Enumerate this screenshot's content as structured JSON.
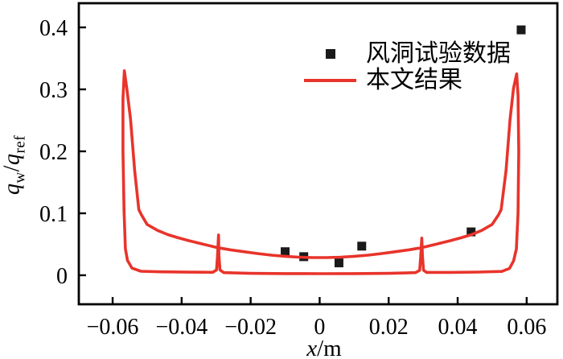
{
  "figure": {
    "background": "#ffffff",
    "axis_color": "#000000"
  },
  "axes": {
    "xlabel": {
      "variable": "x",
      "rest": "/m"
    },
    "ylabel": {
      "var1": "q",
      "sub1": "w",
      "separator": "/",
      "var2": "q",
      "sub2": "ref"
    }
  },
  "legend": {
    "items": [
      {
        "label": "风洞试验数据",
        "marker": "square",
        "color": "#1a1a1a"
      },
      {
        "label": "本文结果",
        "marker": "line",
        "color": "#e8342b"
      }
    ]
  },
  "chart_data": {
    "type": "line",
    "title": "",
    "xlabel": "x/m",
    "ylabel": "qw/qref",
    "xlim": [
      -0.0698,
      0.0689
    ],
    "ylim": [
      -0.0468,
      0.439
    ],
    "grid": false,
    "legend_position": "upper center",
    "xticks": [
      -0.06,
      -0.04,
      -0.02,
      0,
      0.02,
      0.04,
      0.06
    ],
    "xtick_labels": [
      "−0.06",
      "−0.04",
      "−0.02",
      "0",
      "0.02",
      "0.04",
      "0.06"
    ],
    "yticks": [
      0,
      0.1,
      0.2,
      0.3,
      0.4
    ],
    "ytick_labels": [
      "0",
      "0.1",
      "0.2",
      "0.3",
      "0.4"
    ],
    "series": [
      {
        "name": "风洞试验数据",
        "type": "scatter",
        "marker": "square",
        "marker_size": 11,
        "color": "#1a1a1a",
        "points": [
          [
            -0.01,
            0.038
          ],
          [
            -0.0046,
            0.03
          ],
          [
            0.0056,
            0.02
          ],
          [
            0.0122,
            0.047
          ],
          [
            0.0439,
            0.07
          ],
          [
            0.0584,
            0.396
          ]
        ]
      },
      {
        "name": "本文结果",
        "type": "line",
        "color": "#e8342b",
        "line_width": 3.6,
        "closed": true,
        "points": [
          [
            -0.0566,
            0.33
          ],
          [
            -0.0559,
            0.302
          ],
          [
            -0.0548,
            0.252
          ],
          [
            -0.0536,
            0.168
          ],
          [
            -0.0524,
            0.106
          ],
          [
            -0.0516,
            0.097
          ],
          [
            -0.05,
            0.082
          ],
          [
            -0.047,
            0.0725
          ],
          [
            -0.044,
            0.0655
          ],
          [
            -0.041,
            0.0605
          ],
          [
            -0.038,
            0.056
          ],
          [
            -0.034,
            0.0505
          ],
          [
            -0.03,
            0.045
          ],
          [
            -0.026,
            0.0412
          ],
          [
            -0.022,
            0.038
          ],
          [
            -0.018,
            0.035
          ],
          [
            -0.014,
            0.0324
          ],
          [
            -0.01,
            0.0306
          ],
          [
            -0.006,
            0.0292
          ],
          [
            -0.002,
            0.0286
          ],
          [
            0.002,
            0.0286
          ],
          [
            0.006,
            0.0292
          ],
          [
            0.01,
            0.0306
          ],
          [
            0.014,
            0.0324
          ],
          [
            0.018,
            0.035
          ],
          [
            0.022,
            0.038
          ],
          [
            0.026,
            0.0412
          ],
          [
            0.03,
            0.045
          ],
          [
            0.034,
            0.0505
          ],
          [
            0.038,
            0.056
          ],
          [
            0.041,
            0.0605
          ],
          [
            0.044,
            0.0655
          ],
          [
            0.047,
            0.0725
          ],
          [
            0.05,
            0.082
          ],
          [
            0.0518,
            0.097
          ],
          [
            0.0526,
            0.106
          ],
          [
            0.054,
            0.168
          ],
          [
            0.0552,
            0.252
          ],
          [
            0.0562,
            0.302
          ],
          [
            0.0571,
            0.325
          ],
          [
            0.0575,
            0.29
          ],
          [
            0.0577,
            0.2
          ],
          [
            0.0575,
            0.1
          ],
          [
            0.057,
            0.042
          ],
          [
            0.0562,
            0.023
          ],
          [
            0.055,
            0.011
          ],
          [
            0.0528,
            0.0062
          ],
          [
            0.046,
            0.0052
          ],
          [
            0.038,
            0.0047
          ],
          [
            0.031,
            0.0047
          ],
          [
            0.0301,
            0.008
          ],
          [
            0.0298,
            0.03
          ],
          [
            0.0296,
            0.06
          ],
          [
            0.0293,
            0.03
          ],
          [
            0.029,
            0.008
          ],
          [
            0.0278,
            0.0042
          ],
          [
            0.02,
            0.0031
          ],
          [
            0.01,
            0.0027
          ],
          [
            0.0,
            0.0026
          ],
          [
            -0.01,
            0.0027
          ],
          [
            -0.02,
            0.0031
          ],
          [
            -0.0278,
            0.0042
          ],
          [
            -0.0289,
            0.0085
          ],
          [
            -0.0292,
            0.032
          ],
          [
            -0.0293,
            0.065
          ],
          [
            -0.0296,
            0.032
          ],
          [
            -0.0299,
            0.0085
          ],
          [
            -0.031,
            0.0048
          ],
          [
            -0.038,
            0.005
          ],
          [
            -0.046,
            0.0056
          ],
          [
            -0.0518,
            0.0065
          ],
          [
            -0.0544,
            0.0115
          ],
          [
            -0.0557,
            0.024
          ],
          [
            -0.0563,
            0.043
          ],
          [
            -0.0567,
            0.105
          ],
          [
            -0.057,
            0.2
          ],
          [
            -0.057,
            0.285
          ]
        ]
      }
    ]
  }
}
